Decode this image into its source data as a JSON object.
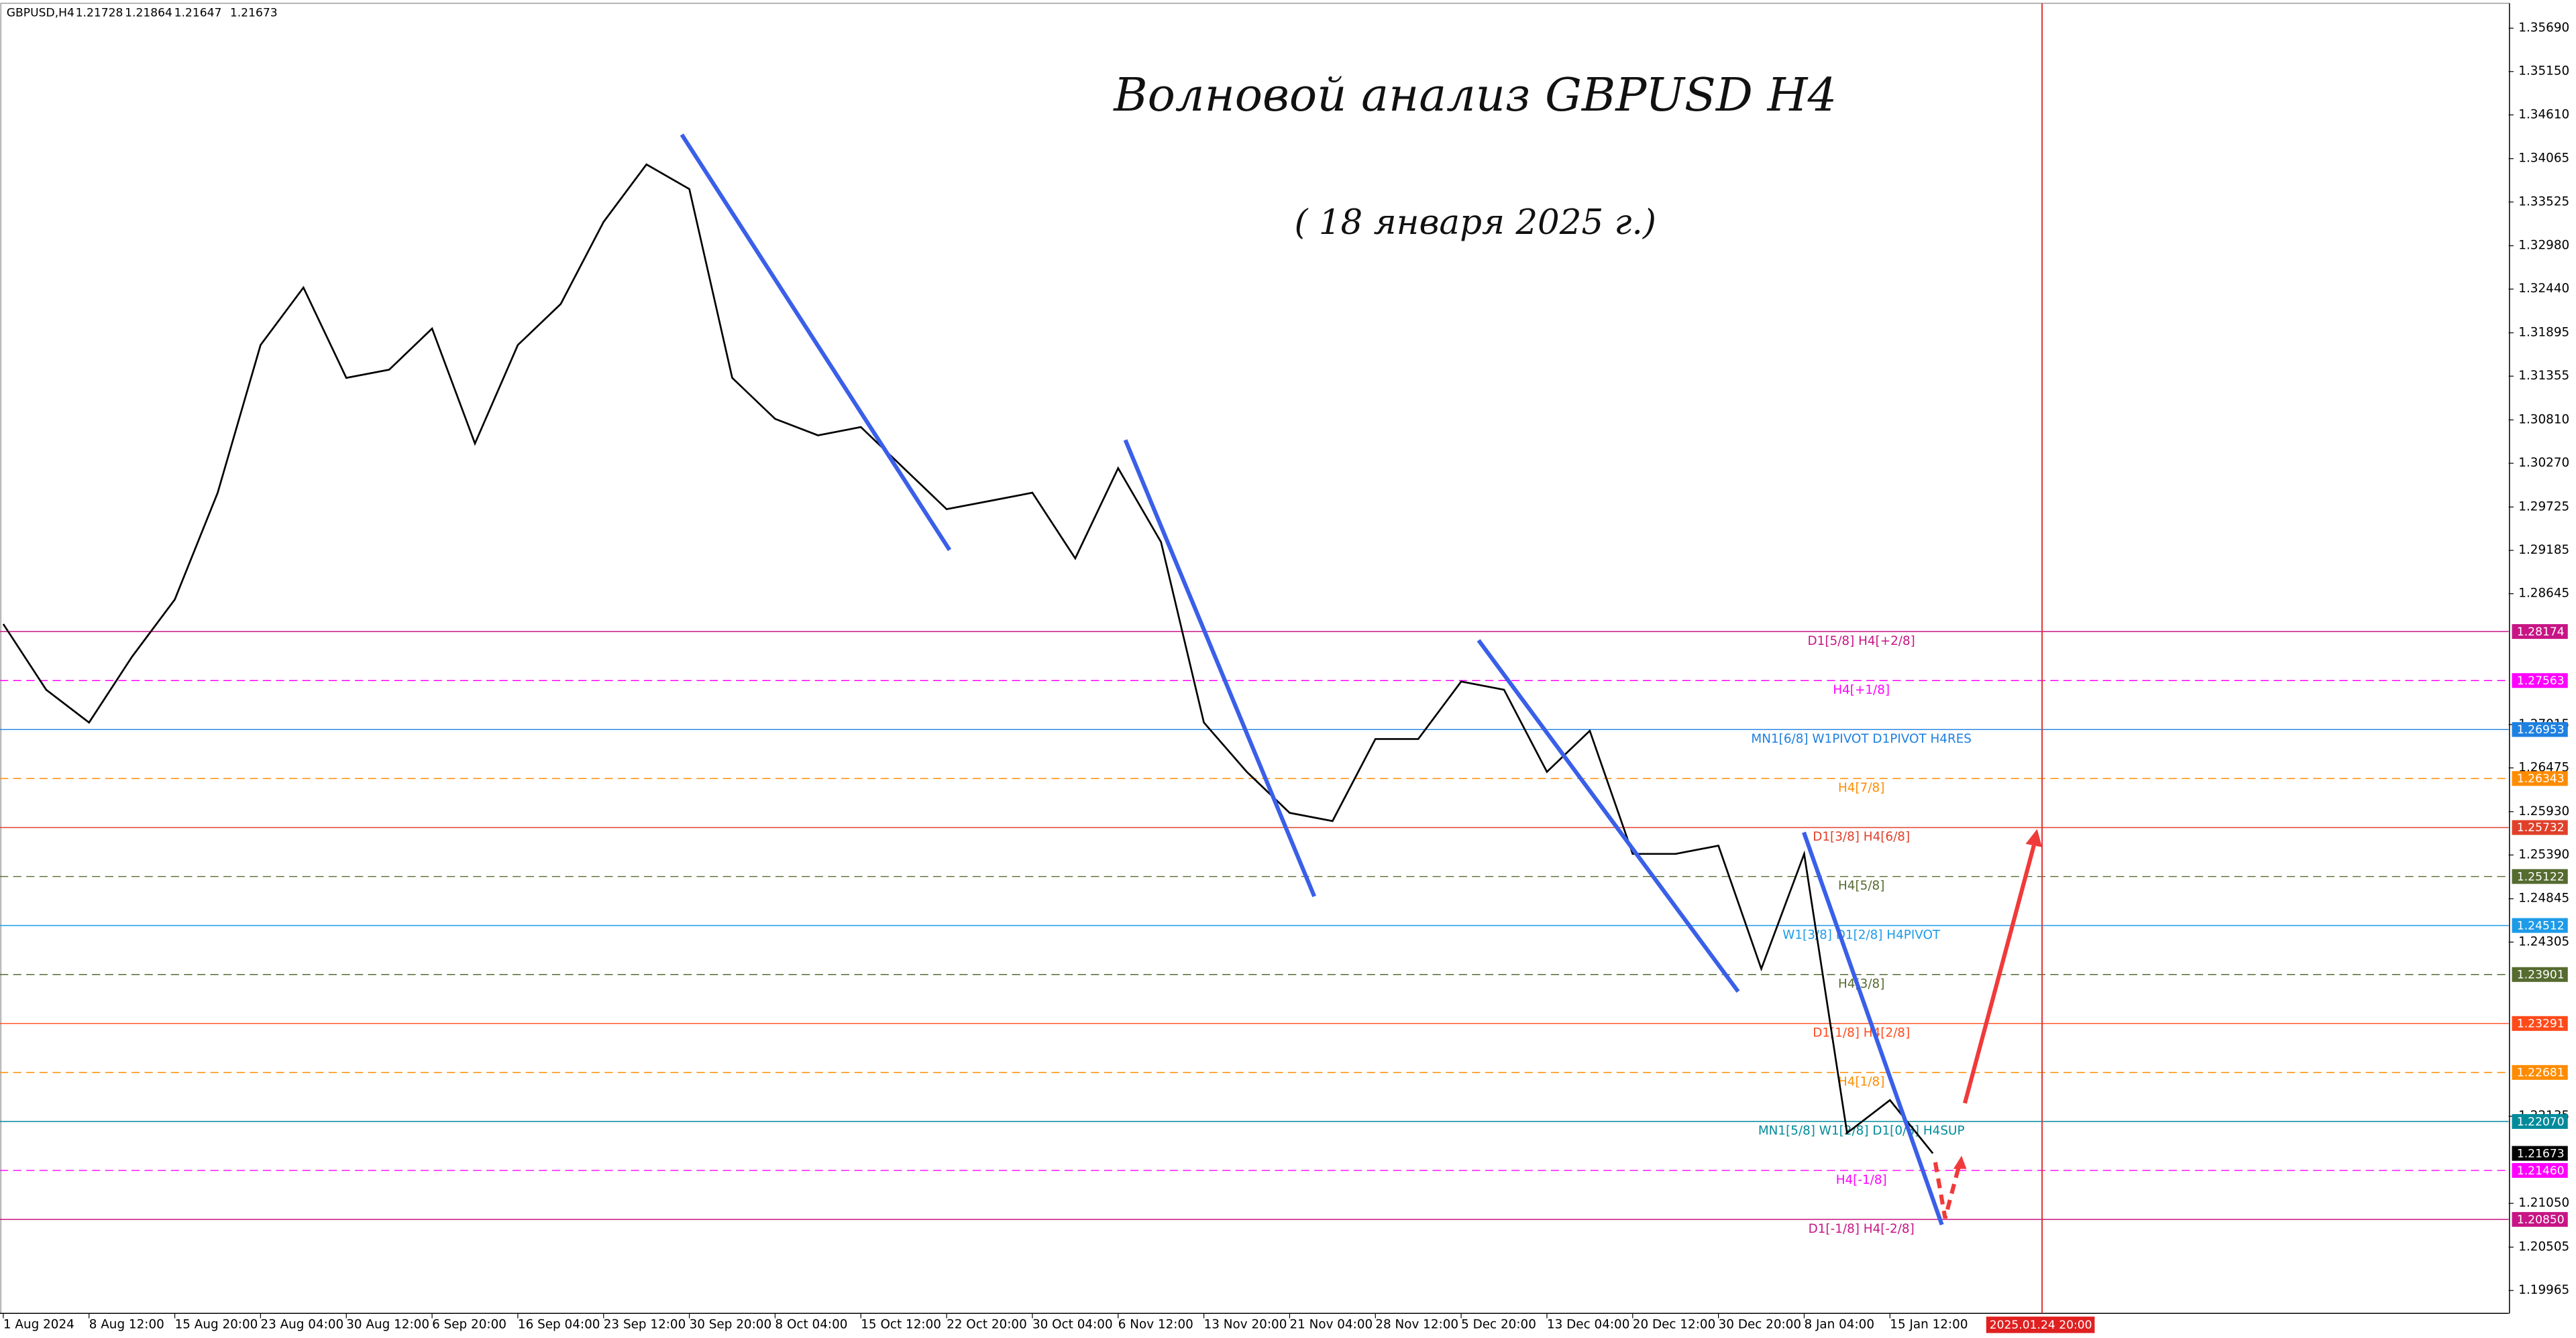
{
  "header": {
    "symbol": "GBPUSD,H4",
    "ohlc": [
      1.21728,
      1.21864,
      1.21647,
      1.21673
    ]
  },
  "chart_data": {
    "type": "line",
    "title": "Волновой анализ GBPUSD H4",
    "subtitle": "( 18 января 2025 г.)",
    "categories": [
      "1 Aug 2024",
      null,
      "8 Aug 12:00",
      null,
      "15 Aug 20:00",
      null,
      "23 Aug 04:00",
      null,
      "30 Aug 12:00",
      null,
      "6 Sep 20:00",
      null,
      "16 Sep 04:00",
      null,
      "23 Sep 12:00",
      null,
      "30 Sep 20:00",
      null,
      "8 Oct 04:00",
      null,
      "15 Oct 12:00",
      null,
      "22 Oct 20:00",
      null,
      "30 Oct 04:00",
      null,
      "6 Nov 12:00",
      null,
      "13 Nov 20:00",
      null,
      "21 Nov 04:00",
      null,
      "28 Nov 12:00",
      null,
      "5 Dec 20:00",
      null,
      "13 Dec 04:00",
      null,
      "20 Dec 12:00",
      null,
      "30 Dec 20:00",
      null,
      "8 Jan 04:00",
      null,
      "15 Jan 12:00",
      null
    ],
    "series": [
      {
        "name": "GBPUSD,H4",
        "color": "#000000",
        "values": [
          1.28267,
          1.27449,
          1.2704,
          1.27858,
          1.28573,
          1.29903,
          1.31743,
          1.32459,
          1.31334,
          1.31436,
          1.31948,
          1.30516,
          1.31743,
          1.32254,
          1.33277,
          1.33993,
          1.33686,
          1.31334,
          1.30823,
          1.30618,
          1.30721,
          1.30209,
          1.29698,
          1.298,
          1.29903,
          1.29085,
          1.30209,
          1.29289,
          1.2704,
          1.26426,
          1.25915,
          1.25813,
          1.26835,
          1.26835,
          1.27551,
          1.27449,
          1.26426,
          1.26937,
          1.25404,
          1.25404,
          1.25506,
          1.23972,
          1.25404,
          1.21927,
          1.22336,
          1.21673
        ]
      }
    ],
    "ylim": [
      1.1968,
      1.36
    ],
    "yticks": [
      {
        "value": 1.3569,
        "label": "1.35690"
      },
      {
        "value": 1.3515,
        "label": "1.35150"
      },
      {
        "value": 1.3461,
        "label": "1.34610"
      },
      {
        "value": 1.34065,
        "label": "1.34065"
      },
      {
        "value": 1.33525,
        "label": "1.33525"
      },
      {
        "value": 1.3298,
        "label": "1.32980"
      },
      {
        "value": 1.3244,
        "label": "1.32440"
      },
      {
        "value": 1.31895,
        "label": "1.31895"
      },
      {
        "value": 1.31355,
        "label": "1.31355"
      },
      {
        "value": 1.3081,
        "label": "1.30810"
      },
      {
        "value": 1.3027,
        "label": "1.30270"
      },
      {
        "value": 1.29725,
        "label": "1.29725"
      },
      {
        "value": 1.29185,
        "label": "1.29185"
      },
      {
        "value": 1.28645,
        "label": "1.28645"
      },
      {
        "value": 1.27015,
        "label": "1.27015"
      },
      {
        "value": 1.26475,
        "label": "1.26475"
      },
      {
        "value": 1.2593,
        "label": "1.25930"
      },
      {
        "value": 1.2539,
        "label": "1.25390"
      },
      {
        "value": 1.24845,
        "label": "1.24845"
      },
      {
        "value": 1.24305,
        "label": "1.24305"
      },
      {
        "value": 1.22135,
        "label": "1.22135"
      },
      {
        "value": 1.2105,
        "label": "1.21050"
      },
      {
        "value": 1.20505,
        "label": "1.20505"
      },
      {
        "value": 1.19965,
        "label": "1.19965"
      }
    ],
    "levels": [
      {
        "label": "D1[5/8] H4[+2/8]",
        "price": 1.28174,
        "color": "#c71585",
        "dashed": false
      },
      {
        "label": "H4[+1/8]",
        "price": 1.27563,
        "color": "#ff00ff",
        "dashed": true
      },
      {
        "label": "MN1[6/8] W1PIVOT D1PIVOT H4RES",
        "price": 1.26953,
        "color": "#1e80e0",
        "dashed": false
      },
      {
        "label": "H4[7/8]",
        "price": 1.26343,
        "color": "#ff8c00",
        "dashed": true
      },
      {
        "label": "D1[3/8] H4[6/8]",
        "price": 1.25732,
        "color": "#e0402a",
        "dashed": false
      },
      {
        "label": "H4[5/8]",
        "price": 1.25122,
        "color": "#556b2f",
        "dashed": true
      },
      {
        "label": "W1[3/8] D1[2/8] H4PIVOT",
        "price": 1.24512,
        "color": "#1e9be8",
        "dashed": false
      },
      {
        "label": "H4[3/8]",
        "price": 1.23901,
        "color": "#556b2f",
        "dashed": true
      },
      {
        "label": "D1[1/8] H4[2/8]",
        "price": 1.23291,
        "color": "#ff4a1a",
        "dashed": false
      },
      {
        "label": "H4[1/8]",
        "price": 1.22681,
        "color": "#ff8c00",
        "dashed": true
      },
      {
        "label": "MN1[5/8] W1[2/8] D1[0/8] H4SUP",
        "price": 1.2207,
        "price_label": "1.22070",
        "color": "#008b9b",
        "dashed": false
      },
      {
        "label": "H4[-1/8]",
        "price": 1.2146,
        "price_label": "1.21460",
        "color": "#ff00ff",
        "dashed": true
      },
      {
        "label": "D1[-1/8] H4[-2/8]",
        "price": 1.2085,
        "price_label": "1.20850",
        "color": "#c71585",
        "dashed": false
      }
    ],
    "current_price": 1.21673,
    "forecast_time": "2025.01.24 20:00"
  }
}
